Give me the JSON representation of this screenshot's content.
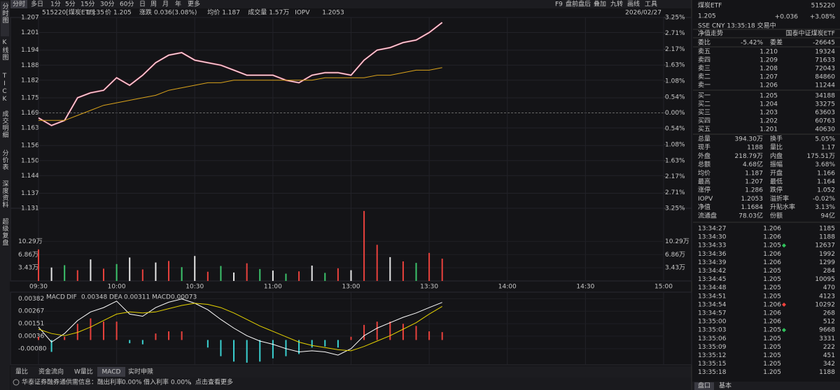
{
  "sidebar": {
    "tabs": [
      "分时图",
      "K线图",
      "TICK",
      "成交明细",
      "分价表",
      "深度资料",
      "超级复盘"
    ]
  },
  "toolbar": {
    "periods": [
      "分时",
      "多日",
      "1分",
      "5分",
      "15分",
      "30分",
      "60分",
      "日",
      "周",
      "月",
      "年",
      "更多"
    ],
    "tools": [
      "F9",
      "盘前盘后",
      "叠加",
      "九转",
      "画线",
      "工具"
    ]
  },
  "chart_header": {
    "items": [
      {
        "label": "价",
        "value": "1.205"
      },
      {
        "label": "涨跌",
        "value": "0.036(3.08%)"
      },
      {
        "label": "均价",
        "value": "1.187"
      },
      {
        "label": "成交量",
        "value": "1.57万"
      },
      {
        "label": "IOPV",
        "value": "1.2053"
      }
    ],
    "date": "2026/02/27"
  },
  "chart_data": [
    {
      "type": "line",
      "title": "515220[煤炭ETF]",
      "subtitle": "13:35",
      "x": [
        "09:30",
        "09:35",
        "09:40",
        "09:45",
        "09:50",
        "09:55",
        "10:00",
        "10:05",
        "10:10",
        "10:15",
        "10:20",
        "10:25",
        "10:30",
        "10:35",
        "10:40",
        "10:45",
        "10:50",
        "10:55",
        "11:00",
        "11:05",
        "11:10",
        "11:15",
        "11:20",
        "11:25",
        "11:30",
        "13:05",
        "13:10",
        "13:15",
        "13:20",
        "13:25",
        "13:30",
        "13:35"
      ],
      "series": [
        {
          "color": "#ffffff",
          "values": [
            1.167,
            1.164,
            1.166,
            1.175,
            1.177,
            1.178,
            1.183,
            1.18,
            1.184,
            1.189,
            1.192,
            1.193,
            1.19,
            1.189,
            1.188,
            1.186,
            1.184,
            1.184,
            1.184,
            1.182,
            1.181,
            1.184,
            1.185,
            1.185,
            1.184,
            1.19,
            1.194,
            1.195,
            1.197,
            1.198,
            1.201,
            1.205
          ]
        },
        {
          "color": "#d9a21b",
          "values": [
            1.166,
            1.166,
            1.166,
            1.168,
            1.17,
            1.172,
            1.173,
            1.174,
            1.175,
            1.176,
            1.178,
            1.179,
            1.18,
            1.181,
            1.181,
            1.182,
            1.182,
            1.182,
            1.182,
            1.182,
            1.182,
            1.182,
            1.183,
            1.183,
            1.183,
            1.183,
            1.184,
            1.184,
            1.185,
            1.186,
            1.186,
            1.187
          ]
        }
      ],
      "ylim": [
        1.131,
        1.207
      ],
      "yticks": [
        1.207,
        1.201,
        1.194,
        1.188,
        1.182,
        1.175,
        1.169,
        1.163,
        1.156,
        {
          "value": 1.15,
          "label": "1.150"
        },
        1.144,
        1.137,
        1.131
      ],
      "y2lim": [
        -3.25,
        3.25
      ],
      "y2ticks": [
        {
          "value": 3.25,
          "label": "3.25%"
        },
        {
          "value": 2.71,
          "label": "2.71%"
        },
        {
          "value": 2.17,
          "label": "2.17%"
        },
        {
          "value": 1.63,
          "label": "1.63%"
        },
        {
          "value": 1.08,
          "label": "1.08%"
        },
        {
          "value": 0.54,
          "label": "0.54%"
        },
        {
          "value": 0,
          "label": "0.00%"
        },
        {
          "value": -0.54,
          "label": "0.54%"
        },
        {
          "value": -1.08,
          "label": "1.08%"
        },
        {
          "value": -1.63,
          "label": "1.63%"
        },
        {
          "value": -2.17,
          "label": "2.17%"
        },
        {
          "value": -2.71,
          "label": "2.71%"
        },
        {
          "value": -3.25,
          "label": "3.25%"
        }
      ],
      "xticks": [
        "09:30",
        "10:00",
        "10:30",
        "11:00",
        "13:00",
        "13:30",
        "14:00",
        "14:30",
        "15:00"
      ]
    },
    {
      "type": "bar",
      "x": [
        "09:30",
        "09:35",
        "09:40",
        "09:45",
        "09:50",
        "09:55",
        "10:00",
        "10:05",
        "10:10",
        "10:15",
        "10:20",
        "10:25",
        "10:30",
        "10:35",
        "10:40",
        "10:45",
        "10:50",
        "10:55",
        "11:00",
        "11:05",
        "11:10",
        "11:15",
        "11:20",
        "11:25",
        "11:30",
        "13:05",
        "13:10",
        "13:15",
        "13:20",
        "13:25",
        "13:30",
        "13:35"
      ],
      "values": [
        8.2,
        3.5,
        4.1,
        2.8,
        5.6,
        3.2,
        4.4,
        6.1,
        3.0,
        4.8,
        5.2,
        3.6,
        6.5,
        2.4,
        3.9,
        2.2,
        4.6,
        3.1,
        2.7,
        1.9,
        2.5,
        4.0,
        2.1,
        3.3,
        2.8,
        18.2,
        9.4,
        6.2,
        5.1,
        4.7,
        7.3,
        5.8
      ],
      "bar_colors": [
        "#e8413c",
        "#e6e6e6",
        "#3cc36b",
        "#e8413c",
        "#e6e6e6",
        "#e8413c",
        "#3cc36b",
        "#e6e6e6",
        "#e8413c",
        "#e6e6e6",
        "#e8413c",
        "#3cc36b",
        "#e6e6e6",
        "#e8413c",
        "#3cc36b",
        "#e6e6e6",
        "#e8413c",
        "#3cc36b",
        "#e6e6e6",
        "#3cc36b",
        "#e8413c",
        "#e6e6e6",
        "#3cc36b",
        "#e8413c",
        "#e6e6e6",
        "#e8413c",
        "#e8413c",
        "#e6e6e6",
        "#e8413c",
        "#3cc36b",
        "#e8413c",
        "#e8413c"
      ],
      "ylim": [
        0,
        18.9
      ],
      "yticks": [
        {
          "value": 10.29,
          "label": "10.29万"
        },
        {
          "value": 6.86,
          "label": "6.86万"
        },
        {
          "value": 3.43,
          "label": "3.43万"
        }
      ]
    },
    {
      "type": "macd",
      "title": "MACD",
      "x": [
        "09:30",
        "09:35",
        "09:40",
        "09:45",
        "09:50",
        "09:55",
        "10:00",
        "10:05",
        "10:10",
        "10:15",
        "10:20",
        "10:25",
        "10:30",
        "10:35",
        "10:40",
        "10:45",
        "10:50",
        "10:55",
        "11:00",
        "11:05",
        "11:10",
        "11:15",
        "11:20",
        "11:25",
        "11:30",
        "13:05",
        "13:10",
        "13:15",
        "13:20",
        "13:25",
        "13:30",
        "13:35"
      ],
      "series": [
        {
          "name": "DIF",
          "color": "#ffffff",
          "values": [
            0.0012,
            -0.0002,
            0.0006,
            0.0018,
            0.0026,
            0.003,
            0.0036,
            0.0024,
            0.0022,
            0.003,
            0.0035,
            0.0038,
            0.0034,
            0.0028,
            0.0019,
            0.0011,
            0.0004,
            -0.0001,
            -0.0004,
            -0.0008,
            -0.0011,
            -0.001,
            -0.0011,
            -0.0014,
            -0.0008,
            0.0004,
            0.0011,
            0.0016,
            0.0021,
            0.0025,
            0.003,
            0.00348
          ]
        },
        {
          "name": "DEA",
          "color": "#e6d300",
          "values": [
            0.001,
            0.0006,
            0.0004,
            0.0007,
            0.0012,
            0.0018,
            0.0024,
            0.0026,
            0.0025,
            0.0026,
            0.0029,
            0.0032,
            0.0034,
            0.0033,
            0.003,
            0.0025,
            0.0019,
            0.0013,
            0.0008,
            0.0003,
            -0.0002,
            -0.0005,
            -0.0007,
            -0.0009,
            -0.001,
            -0.0006,
            -0.0001,
            0.0004,
            0.001,
            0.0016,
            0.0024,
            0.00311
          ]
        },
        {
          "name": "MACD",
          "color": "#e040e0",
          "values": [
            0.0003,
            -0.0011,
            0.0003,
            0.0015,
            0.002,
            0.0017,
            0.0017,
            -0.0003,
            -0.0004,
            0.0006,
            0.0008,
            0.0008,
            0,
            -0.0007,
            -0.0015,
            -0.002,
            -0.0021,
            -0.002,
            -0.0017,
            -0.0015,
            -0.0013,
            -0.0007,
            -0.0006,
            -0.0007,
            0.0003,
            0.0014,
            0.0017,
            0.0017,
            0.0015,
            0.0013,
            0.0008,
            0.00073
          ]
        }
      ],
      "ylim": [
        -0.0023,
        0.0043
      ],
      "yticks": [
        0.00382,
        0.00267,
        0.00151,
        0.00036,
        {
          "value": -0.0008,
          "label": "-0.00080"
        }
      ]
    }
  ],
  "bottom_tabs": [
    "量比",
    "资金流向",
    "W量比",
    "MACD",
    "实时申赎"
  ],
  "status_bar": {
    "source": "华泰证券融券通供需信息：融出利率",
    "lend_rate": "0.00%",
    "borrow_label": "借入利率",
    "borrow_rate": "0.00%",
    "link": "，点击查看更多"
  },
  "quote": {
    "name": "煤炭ETF",
    "code": "515220",
    "price": "1.205",
    "change": "+0.036",
    "pct": "+3.08%",
    "meta": "SSE  CNY  13:35:18  交易中"
  },
  "nav": {
    "label": "净值走势",
    "index": "国泰中证煤炭ETF"
  },
  "order_ratio": {
    "label": "委比",
    "value": "-5.42%",
    "diff_label": "委差",
    "diff": "-26645"
  },
  "asks": [
    [
      "卖五",
      "1.210",
      "19324"
    ],
    [
      "卖四",
      "1.209",
      "71633"
    ],
    [
      "卖三",
      "1.208",
      "72043"
    ],
    [
      "卖二",
      "1.207",
      "84860"
    ],
    [
      "卖一",
      "1.206",
      "11244"
    ]
  ],
  "bids": [
    [
      "买一",
      "1.205",
      "34188"
    ],
    [
      "买二",
      "1.204",
      "33275"
    ],
    [
      "买三",
      "1.203",
      "63603"
    ],
    [
      "买四",
      "1.202",
      "60763"
    ],
    [
      "买五",
      "1.201",
      "40630"
    ]
  ],
  "stats": [
    [
      "总量",
      "394.30万",
      "换手",
      "5.05%"
    ],
    [
      "现手",
      "1188",
      "量比",
      "1.17"
    ],
    [
      "外盘",
      "218.79万",
      "内盘",
      "175.51万"
    ],
    [
      "总额",
      "4.68亿",
      "振幅",
      "3.68%"
    ],
    [
      "均价",
      "1.187",
      "开盘",
      "1.166"
    ],
    [
      "最高",
      "1.207",
      "最低",
      "1.164"
    ],
    [
      "涨停",
      "1.286",
      "跌停",
      "1.052"
    ],
    [
      "IOPV",
      "1.2053",
      "溢折率",
      "-0.02%"
    ],
    [
      "净值",
      "1.1684",
      "升贴水率",
      "3.13%"
    ],
    [
      "流通盘",
      "78.03亿",
      "份额",
      "94亿"
    ]
  ],
  "trades": [
    [
      "13:34:27",
      "1.206",
      "1185"
    ],
    [
      "13:34:30",
      "1.206",
      "1188"
    ],
    [
      "13:34:33",
      "1.205",
      "12637"
    ],
    [
      "13:34:36",
      "1.206",
      "1992"
    ],
    [
      "13:34:39",
      "1.206",
      "1299"
    ],
    [
      "13:34:42",
      "1.205",
      "284"
    ],
    [
      "13:34:45",
      "1.205",
      "10095"
    ],
    [
      "13:34:48",
      "1.205",
      "470"
    ],
    [
      "13:34:51",
      "1.205",
      "4123"
    ],
    [
      "13:34:54",
      "1.206",
      "10292"
    ],
    [
      "13:34:57",
      "1.206",
      "268"
    ],
    [
      "13:35:00",
      "1.206",
      "512"
    ],
    [
      "13:35:03",
      "1.205",
      "9668"
    ],
    [
      "13:35:06",
      "1.205",
      "3331"
    ],
    [
      "13:35:09",
      "1.205",
      "222"
    ],
    [
      "13:35:12",
      "1.205",
      "451"
    ],
    [
      "13:35:15",
      "1.205",
      "342"
    ],
    [
      "13:35:18",
      "1.205",
      "1188"
    ]
  ],
  "panel_tabs": [
    "盘口",
    "基本"
  ]
}
